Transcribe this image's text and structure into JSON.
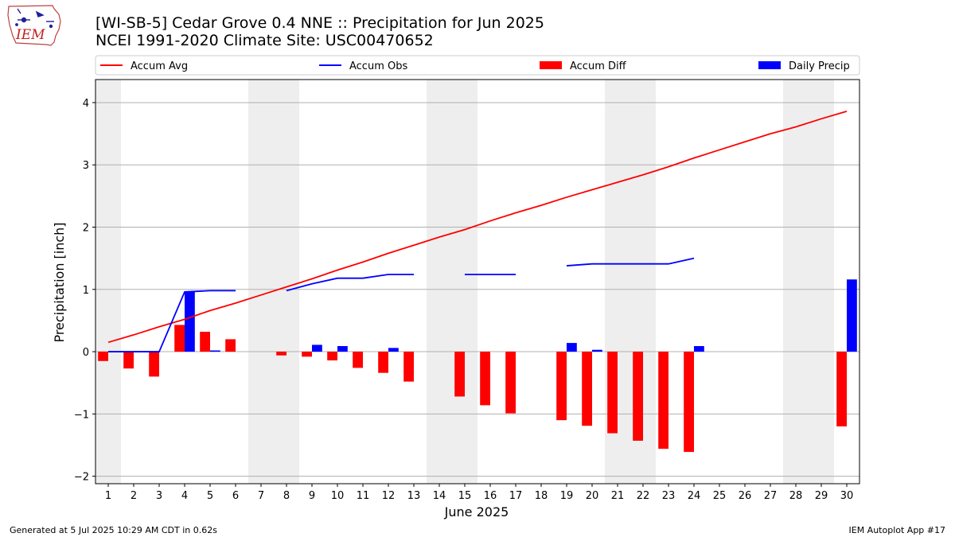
{
  "header": {
    "title_line1": "[WI-SB-5] Cedar Grove 0.4 NNE :: Precipitation for Jun 2025",
    "title_line2": "NCEI 1991-2020 Climate Site: USC00470652",
    "logo_text": "IEM"
  },
  "footer": {
    "generated": "Generated at 5 Jul 2025 10:29 AM CDT in 0.62s",
    "app": "IEM Autoplot App #17"
  },
  "colors": {
    "accum_avg": "#ff0000",
    "accum_obs": "#0000ff",
    "accum_diff": "#ff0000",
    "daily_precip": "#0000ff",
    "weekend_shade": "#eeeeee",
    "grid": "#b0b0b0"
  },
  "chart_data": {
    "type": "bar",
    "xlabel": "June 2025",
    "ylabel": "Precipitation [inch]",
    "ylim": [
      -2.12,
      4.37
    ],
    "yticks": [
      -2,
      -1,
      0,
      1,
      2,
      3,
      4
    ],
    "ytick_labels": [
      "−2",
      "−1",
      "0",
      "1",
      "2",
      "3",
      "4"
    ],
    "grid": "horizontal",
    "legend_position": "top",
    "legend": [
      "Accum Avg",
      "Accum Obs",
      "Accum Diff",
      "Daily Precip"
    ],
    "days": [
      1,
      2,
      3,
      4,
      5,
      6,
      7,
      8,
      9,
      10,
      11,
      12,
      13,
      14,
      15,
      16,
      17,
      18,
      19,
      20,
      21,
      22,
      23,
      24,
      25,
      26,
      27,
      28,
      29,
      30
    ],
    "weekend_shading_days": [
      1,
      7,
      8,
      14,
      15,
      21,
      22,
      28,
      29
    ],
    "series": [
      {
        "name": "Accum Avg",
        "kind": "line",
        "values": [
          0.15,
          0.27,
          0.4,
          0.52,
          0.66,
          0.78,
          0.91,
          1.04,
          1.17,
          1.31,
          1.44,
          1.58,
          1.71,
          1.84,
          1.96,
          2.1,
          2.23,
          2.35,
          2.48,
          2.6,
          2.72,
          2.84,
          2.97,
          3.11,
          3.24,
          3.37,
          3.5,
          3.61,
          3.74,
          3.86
        ]
      },
      {
        "name": "Accum Obs",
        "kind": "line",
        "values": [
          0.0,
          0.0,
          0.0,
          0.96,
          0.98,
          0.98,
          null,
          0.98,
          1.09,
          1.18,
          1.18,
          1.24,
          1.24,
          null,
          1.24,
          1.24,
          1.24,
          null,
          1.38,
          1.41,
          1.41,
          1.41,
          1.41,
          1.5,
          null,
          null,
          null,
          null,
          null,
          null
        ]
      },
      {
        "name": "Accum Diff",
        "kind": "bar",
        "values": [
          -0.15,
          -0.27,
          -0.4,
          0.43,
          0.32,
          0.2,
          null,
          -0.06,
          -0.08,
          -0.14,
          -0.26,
          -0.34,
          -0.48,
          null,
          -0.72,
          -0.86,
          -0.99,
          null,
          -1.1,
          -1.19,
          -1.31,
          -1.43,
          -1.56,
          -1.61,
          null,
          null,
          null,
          null,
          null,
          -1.2
        ]
      },
      {
        "name": "Daily Precip",
        "kind": "bar",
        "values": [
          0.0,
          0.0,
          0.0,
          0.96,
          0.02,
          0.0,
          null,
          0.0,
          0.11,
          0.09,
          0.0,
          0.06,
          0.0,
          null,
          0.0,
          0.0,
          0.0,
          null,
          0.14,
          0.03,
          0.0,
          0.0,
          0.0,
          0.09,
          null,
          null,
          null,
          null,
          null,
          1.16
        ]
      }
    ]
  }
}
